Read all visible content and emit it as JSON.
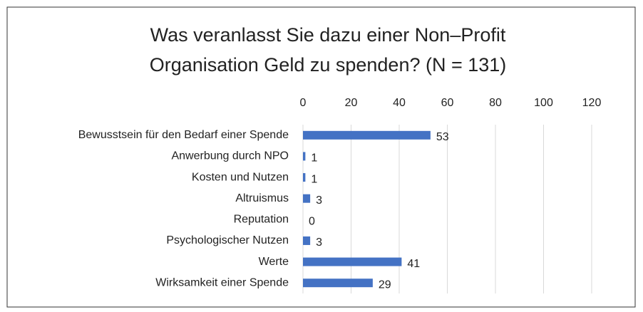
{
  "chart_data": {
    "type": "barh",
    "title": "Was veranlasst Sie dazu einer Non–Profit Organisation Geld zu spenden? (N = 131)",
    "categories": [
      "Bewusstsein für den Bedarf einer Spende",
      "Anwerbung durch NPO",
      "Kosten und Nutzen",
      "Altruismus",
      "Reputation",
      "Psychologischer Nutzen",
      "Werte",
      "Wirksamkeit einer Spende"
    ],
    "values": [
      53,
      1,
      1,
      3,
      0,
      3,
      41,
      29
    ],
    "color": "#4472c4",
    "xlim": [
      0,
      120
    ],
    "xticks": [
      0,
      20,
      40,
      60,
      80,
      100,
      120
    ],
    "grid": true
  }
}
